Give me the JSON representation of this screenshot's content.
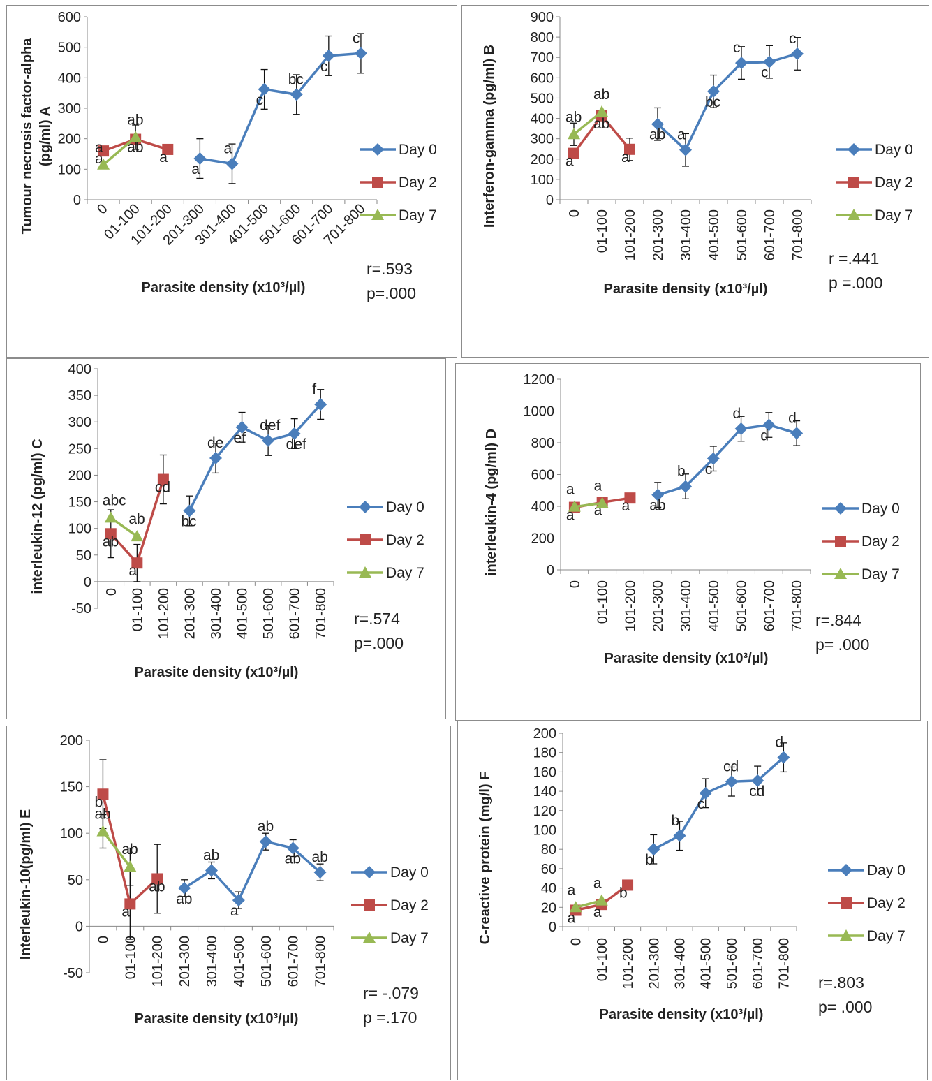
{
  "colors": {
    "day0": "#4a7ebb",
    "day2": "#be4b48",
    "day7": "#98b954",
    "axis": "#888888",
    "text": "#222222"
  },
  "charts": [
    {
      "id": "A",
      "ylabel": "Tumour necrosis factor-alpha\n(pg/ml) A",
      "xlabel": "Parasite density (x10³/µl)",
      "stats": [
        "r=.593",
        "p=.000"
      ]
    },
    {
      "id": "B",
      "ylabel": "Interferon-gamma (pg/ml) B",
      "xlabel": "Parasite density (x10³/µl)",
      "stats": [
        "r =.441",
        "p =.000"
      ]
    },
    {
      "id": "C",
      "ylabel": "interleukin-12 (pg/ml) C",
      "xlabel": "Parasite density (x10³/µl)",
      "stats": [
        "r=.574",
        "p=.000"
      ]
    },
    {
      "id": "D",
      "ylabel": "interleukin-4 (pg/ml) D",
      "xlabel": "Parasite density (x10³/µl)",
      "stats": [
        "r=.844",
        "p= .000"
      ]
    },
    {
      "id": "E",
      "ylabel": "Interleukin-10(pg/ml) E",
      "xlabel": "Parasite density (x10³/µl)",
      "stats": [
        "r= -.079",
        "p =.170"
      ]
    },
    {
      "id": "F",
      "ylabel": "C-reactive protein (mg/l) F",
      "xlabel": "Parasite density (x10³/µl)",
      "stats": [
        "r=.803",
        "p= .000"
      ]
    }
  ],
  "chart_data": [
    {
      "type": "line",
      "categories": [
        "0",
        "01-100",
        "101-200",
        "201-300",
        "301-400",
        "401-500",
        "501-600",
        "601-700",
        "701-800"
      ],
      "ylim": [
        0,
        600
      ],
      "yticks": [
        0,
        100,
        200,
        300,
        400,
        500,
        600
      ],
      "series": [
        {
          "name": "Day 0",
          "values": [
            null,
            null,
            null,
            135,
            118,
            362,
            345,
            472,
            480
          ],
          "errors": [
            null,
            null,
            null,
            65,
            65,
            65,
            65,
            65,
            65
          ],
          "labels": [
            null,
            null,
            null,
            "a",
            "a",
            "c",
            "bc",
            "c",
            "c"
          ]
        },
        {
          "name": "Day 2",
          "values": [
            160,
            198,
            165,
            null,
            null,
            null,
            null,
            null,
            null
          ],
          "errors": [
            null,
            null,
            null,
            null,
            null,
            null,
            null,
            null,
            null
          ],
          "labels": [
            "a",
            "ab",
            "a",
            null,
            null,
            null,
            null,
            null,
            null
          ]
        },
        {
          "name": "Day 7",
          "values": [
            115,
            205,
            null,
            null,
            null,
            null,
            null,
            null,
            null
          ],
          "errors": [
            null,
            40,
            null,
            null,
            null,
            null,
            null,
            null,
            null
          ],
          "labels": [
            "a",
            "ab",
            null,
            null,
            null,
            null,
            null,
            null,
            null
          ]
        }
      ]
    },
    {
      "type": "line",
      "categories": [
        "0",
        "01-100",
        "101-200",
        "201-300",
        "301-400",
        "401-500",
        "501-600",
        "601-700",
        "701-800"
      ],
      "ylim": [
        0,
        900
      ],
      "yticks": [
        0,
        100,
        200,
        300,
        400,
        500,
        600,
        700,
        800,
        900
      ],
      "series": [
        {
          "name": "Day 0",
          "values": [
            null,
            null,
            null,
            372,
            245,
            533,
            673,
            678,
            718
          ],
          "errors": [
            null,
            null,
            null,
            80,
            80,
            80,
            80,
            80,
            80
          ],
          "labels": [
            null,
            null,
            null,
            "ab",
            "a",
            "bc",
            "c",
            "c",
            "c"
          ]
        },
        {
          "name": "Day 2",
          "values": [
            228,
            413,
            248,
            null,
            null,
            null,
            null,
            null,
            null
          ],
          "errors": [
            null,
            null,
            55,
            null,
            null,
            null,
            null,
            null,
            null
          ],
          "labels": [
            "a",
            "ab",
            "a",
            null,
            null,
            null,
            null,
            null,
            null
          ]
        },
        {
          "name": "Day 7",
          "values": [
            322,
            433,
            null,
            null,
            null,
            null,
            null,
            null,
            null
          ],
          "errors": [
            55,
            null,
            null,
            null,
            null,
            null,
            null,
            null,
            null
          ],
          "labels": [
            "ab",
            "ab",
            null,
            null,
            null,
            null,
            null,
            null,
            null
          ]
        }
      ]
    },
    {
      "type": "line",
      "categories": [
        "0",
        "01-100",
        "101-200",
        "201-300",
        "301-400",
        "401-500",
        "501-600",
        "601-700",
        "701-800"
      ],
      "ylim": [
        -50,
        400
      ],
      "yticks": [
        -50,
        0,
        50,
        100,
        150,
        200,
        250,
        300,
        350,
        400
      ],
      "series": [
        {
          "name": "Day 0",
          "values": [
            null,
            null,
            null,
            133,
            232,
            290,
            265,
            278,
            333
          ],
          "errors": [
            null,
            null,
            null,
            28,
            28,
            28,
            28,
            28,
            28
          ],
          "labels": [
            null,
            null,
            null,
            "bc",
            "de",
            "ef",
            "def",
            "def",
            "f"
          ]
        },
        {
          "name": "Day 2",
          "values": [
            90,
            35,
            192,
            null,
            null,
            null,
            null,
            null,
            null
          ],
          "errors": [
            45,
            35,
            46,
            null,
            null,
            null,
            null,
            null,
            null
          ],
          "labels": [
            "ab",
            "a",
            "cd",
            null,
            null,
            null,
            null,
            null,
            null
          ]
        },
        {
          "name": "Day 7",
          "values": [
            120,
            85,
            null,
            null,
            null,
            null,
            null,
            null,
            null
          ],
          "errors": [
            null,
            null,
            null,
            null,
            null,
            null,
            null,
            null,
            null
          ],
          "labels": [
            "abc",
            "ab",
            null,
            null,
            null,
            null,
            null,
            null,
            null
          ]
        }
      ]
    },
    {
      "type": "line",
      "categories": [
        "0",
        "01-100",
        "101-200",
        "201-300",
        "301-400",
        "401-500",
        "501-600",
        "601-700",
        "701-800"
      ],
      "ylim": [
        0,
        1200
      ],
      "yticks": [
        0,
        200,
        400,
        600,
        800,
        1000,
        1200
      ],
      "series": [
        {
          "name": "Day 0",
          "values": [
            null,
            null,
            null,
            472,
            525,
            700,
            888,
            912,
            860
          ],
          "errors": [
            null,
            null,
            null,
            78,
            78,
            78,
            78,
            78,
            78
          ],
          "labels": [
            null,
            null,
            null,
            "ab",
            "b",
            "c",
            "d",
            "d",
            "d"
          ]
        },
        {
          "name": "Day 2",
          "values": [
            393,
            425,
            452,
            null,
            null,
            null,
            null,
            null,
            null
          ],
          "errors": [
            null,
            null,
            null,
            null,
            null,
            null,
            null,
            null,
            null
          ],
          "labels": [
            "a",
            "a",
            "a",
            null,
            null,
            null,
            null,
            null,
            null
          ]
        },
        {
          "name": "Day 7",
          "values": [
            397,
            420,
            null,
            null,
            null,
            null,
            null,
            null,
            null
          ],
          "errors": [
            null,
            null,
            null,
            null,
            null,
            null,
            null,
            null,
            null
          ],
          "labels": [
            "a",
            "a",
            null,
            null,
            null,
            null,
            null,
            null,
            null
          ]
        }
      ]
    },
    {
      "type": "line",
      "categories": [
        "0",
        "01-100",
        "101-200",
        "201-300",
        "301-400",
        "401-500",
        "501-600",
        "601-700",
        "701-800"
      ],
      "ylim": [
        -50,
        200
      ],
      "yticks": [
        -50,
        0,
        50,
        100,
        150,
        200
      ],
      "series": [
        {
          "name": "Day 0",
          "values": [
            null,
            null,
            null,
            41,
            60,
            28,
            91,
            84,
            58
          ],
          "errors": [
            null,
            null,
            null,
            9,
            9,
            9,
            9,
            9,
            9
          ],
          "labels": [
            null,
            null,
            null,
            "ab",
            "ab",
            "a",
            "ab",
            "ab",
            "ab"
          ]
        },
        {
          "name": "Day 2",
          "values": [
            142,
            24,
            51,
            null,
            null,
            null,
            null,
            null,
            null
          ],
          "errors": [
            37,
            38,
            37,
            null,
            null,
            null,
            null,
            null,
            null
          ],
          "labels": [
            "b",
            "a",
            "ab",
            null,
            null,
            null,
            null,
            null,
            null
          ]
        },
        {
          "name": "Day 7",
          "values": [
            102,
            64,
            null,
            null,
            null,
            null,
            null,
            null,
            null
          ],
          "errors": [
            18,
            20,
            null,
            null,
            null,
            null,
            null,
            null,
            null
          ],
          "labels": [
            "ab",
            "ab",
            null,
            null,
            null,
            null,
            null,
            null,
            null
          ]
        }
      ]
    },
    {
      "type": "line",
      "categories": [
        "0",
        "01-100",
        "101-200",
        "201-300",
        "301-400",
        "401-500",
        "501-600",
        "601-700",
        "701-800"
      ],
      "ylim": [
        0,
        200
      ],
      "yticks": [
        0,
        20,
        40,
        60,
        80,
        100,
        120,
        140,
        160,
        180,
        200
      ],
      "series": [
        {
          "name": "Day 0",
          "values": [
            null,
            null,
            null,
            80,
            94,
            138,
            150,
            151,
            175
          ],
          "errors": [
            null,
            null,
            null,
            15,
            15,
            15,
            15,
            15,
            15
          ],
          "labels": [
            null,
            null,
            null,
            "b",
            "b",
            "c",
            "cd",
            "cd",
            "d"
          ]
        },
        {
          "name": "Day 2",
          "values": [
            17,
            23,
            43,
            null,
            null,
            null,
            null,
            null,
            null
          ],
          "errors": [
            null,
            null,
            null,
            null,
            null,
            null,
            null,
            null,
            null
          ],
          "labels": [
            "a",
            "a",
            "b",
            null,
            null,
            null,
            null,
            null,
            null
          ]
        },
        {
          "name": "Day 7",
          "values": [
            20,
            27,
            null,
            null,
            null,
            null,
            null,
            null,
            null
          ],
          "errors": [
            null,
            null,
            null,
            null,
            null,
            null,
            null,
            null,
            null
          ],
          "labels": [
            "a",
            "a",
            null,
            null,
            null,
            null,
            null,
            null,
            null
          ]
        }
      ]
    }
  ]
}
